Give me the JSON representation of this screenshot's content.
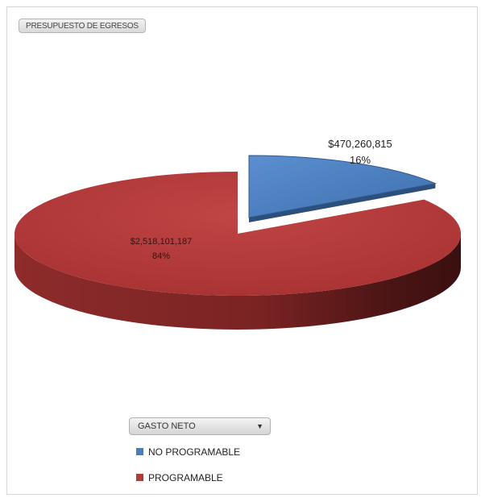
{
  "title_button": "PRESUPUESTO DE EGRESOS",
  "filter": {
    "label": "GASTO NETO"
  },
  "colors": {
    "no_programable": "#4a7ebb",
    "programable": "#b33b3b"
  },
  "chart_data": {
    "type": "pie",
    "categories": [
      "NO PROGRAMABLE",
      "PROGRAMABLE"
    ],
    "values": [
      470260815,
      2518101187
    ],
    "percents": [
      16,
      84
    ],
    "value_labels": [
      "$470,260,815",
      "$2,518,101,187"
    ],
    "percent_labels": [
      "16%",
      "84%"
    ],
    "legend": [
      "NO PROGRAMABLE",
      "PROGRAMABLE"
    ],
    "legend_position": "bottom-left",
    "title": ""
  }
}
